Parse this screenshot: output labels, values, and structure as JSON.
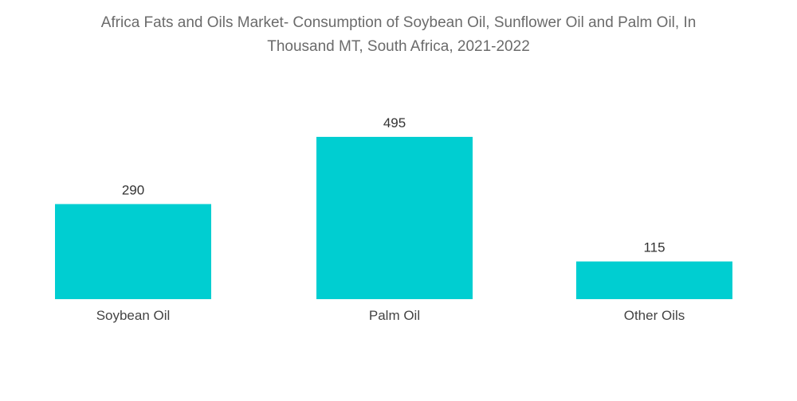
{
  "chart_data": {
    "type": "bar",
    "title_lines": [
      "Africa Fats and Oils Market- Consumption of Soybean Oil, Sunflower Oil and Palm Oil, In",
      "Thousand MT, South Africa, 2021-2022"
    ],
    "categories": [
      "Soybean Oil",
      "Palm Oil",
      "Other Oils"
    ],
    "values": [
      290,
      495,
      115
    ],
    "value_labels": [
      "290",
      "495",
      "115"
    ],
    "xlabel": "",
    "ylabel": "",
    "ylim": [
      0,
      495
    ],
    "grid": false,
    "legend": "none",
    "bar_color": "#00ced1"
  }
}
